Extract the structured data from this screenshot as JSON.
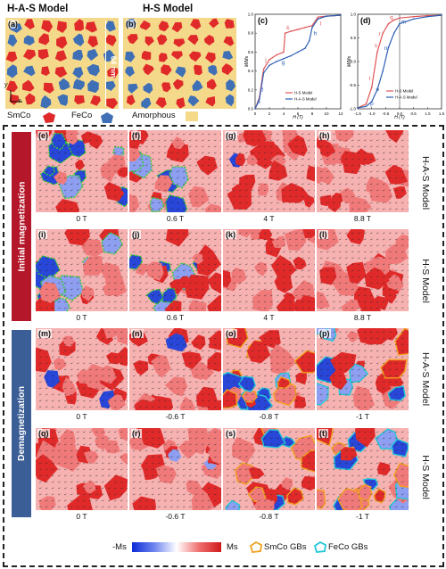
{
  "top": {
    "title_has": "H-A-S Model",
    "title_hs": "H-S Model",
    "panel_a": "(a)",
    "panel_b": "(b)",
    "scale_label": "64 nm",
    "axis_y": "y",
    "axis_x": "x",
    "legend": [
      {
        "label": "SmCo",
        "color": "#e02a2a"
      },
      {
        "label": "FeCo",
        "color": "#3f6fb5"
      },
      {
        "label": "Amorphous",
        "color": "#f5d98b"
      }
    ]
  },
  "chart_data": [
    {
      "type": "line",
      "panel": "(c)",
      "xlabel": "H (T)",
      "ylabel": "M/Ms",
      "xlim": [
        0,
        12
      ],
      "ylim": [
        0,
        1
      ],
      "xticks": [
        "0",
        "2",
        "4",
        "6",
        "8",
        "10",
        "12"
      ],
      "yticks": [
        "0.0",
        "0.2",
        "0.4",
        "0.6",
        "0.8",
        "1.0"
      ],
      "legend": [
        "H-S Model",
        "H-A-S Model"
      ],
      "series": [
        {
          "name": "H-S Model",
          "color": "#e05555",
          "x": [
            0,
            0.6,
            1.2,
            2,
            3,
            4,
            4.2,
            5,
            6,
            7,
            8,
            8.8,
            10,
            12
          ],
          "y": [
            0,
            0.12,
            0.42,
            0.52,
            0.57,
            0.6,
            0.8,
            0.82,
            0.84,
            0.86,
            0.88,
            0.97,
            0.98,
            0.99
          ]
        },
        {
          "name": "H-A-S Model",
          "color": "#2d5fb3",
          "x": [
            0,
            0.6,
            1.2,
            2,
            3,
            4,
            5,
            6,
            7,
            7.6,
            8,
            8.8,
            10,
            12
          ],
          "y": [
            0,
            0.1,
            0.38,
            0.46,
            0.5,
            0.53,
            0.56,
            0.6,
            0.64,
            0.72,
            0.86,
            0.95,
            0.98,
            0.99
          ]
        }
      ],
      "annotations": [
        "e",
        "f",
        "g",
        "h",
        "i",
        "j",
        "k",
        "l"
      ]
    },
    {
      "type": "line",
      "panel": "(d)",
      "xlabel": "H (T)",
      "ylabel": "M/Ms",
      "xlim": [
        -1.5,
        1.5
      ],
      "ylim": [
        -1,
        1
      ],
      "xticks": [
        "-1.5",
        "-1.0",
        "-0.5",
        "0.0",
        "0.5",
        "1.0",
        "1.5"
      ],
      "yticks": [
        "-1.0",
        "-0.5",
        "0.0",
        "0.5",
        "1.0"
      ],
      "legend": [
        "H-S Model",
        "H-A-S Model"
      ],
      "series": [
        {
          "name": "H-S Model",
          "color": "#e05555",
          "x": [
            -1.5,
            -1.2,
            -1.0,
            -0.8,
            -0.6,
            -0.4,
            -0.2,
            0.0,
            0.5,
            1.0,
            1.5
          ],
          "y": [
            -0.98,
            -0.9,
            -0.55,
            0.2,
            0.6,
            0.8,
            0.88,
            0.92,
            0.95,
            0.97,
            0.98
          ]
        },
        {
          "name": "H-A-S Model",
          "color": "#2d5fb3",
          "x": [
            -1.5,
            -1.2,
            -1.0,
            -0.8,
            -0.6,
            -0.4,
            -0.2,
            0.0,
            0.5,
            1.0,
            1.5
          ],
          "y": [
            -0.98,
            -0.95,
            -0.85,
            -0.6,
            -0.2,
            0.3,
            0.6,
            0.8,
            0.9,
            0.95,
            0.98
          ]
        }
      ],
      "annotations": [
        "m",
        "n",
        "o",
        "p",
        "q",
        "r",
        "s",
        "t"
      ]
    }
  ],
  "sidebars": {
    "initial": "Initial magnetization",
    "demag": "Demagnetization"
  },
  "right_labels": [
    "H-A-S Model",
    "H-S Model",
    "H-A-S Model",
    "H-S Model"
  ],
  "rows": [
    {
      "panels": [
        "(e)",
        "(f)",
        "(g)",
        "(h)"
      ],
      "captions": [
        "0 T",
        "0.6 T",
        "4 T",
        "8.8 T"
      ]
    },
    {
      "panels": [
        "(i)",
        "(j)",
        "(k)",
        "(l)"
      ],
      "captions": [
        "0 T",
        "0.6 T",
        "4 T",
        "8.8 T"
      ]
    },
    {
      "panels": [
        "(m)",
        "(n)",
        "(o)",
        "(p)"
      ],
      "captions": [
        "0 T",
        "-0.6 T",
        "-0.8 T",
        "-1 T"
      ]
    },
    {
      "panels": [
        "(q)",
        "(r)",
        "(s)",
        "(t)"
      ],
      "captions": [
        "0 T",
        "-0.6 T",
        "-0.8 T",
        "-1 T"
      ]
    }
  ],
  "colorbar": {
    "min_label": "-Ms",
    "max_label": "Ms"
  },
  "gb_legend": [
    {
      "label": "SmCo GBs",
      "color": "#f0a020"
    },
    {
      "label": "FeCo GBs",
      "color": "#20c8d8"
    }
  ]
}
